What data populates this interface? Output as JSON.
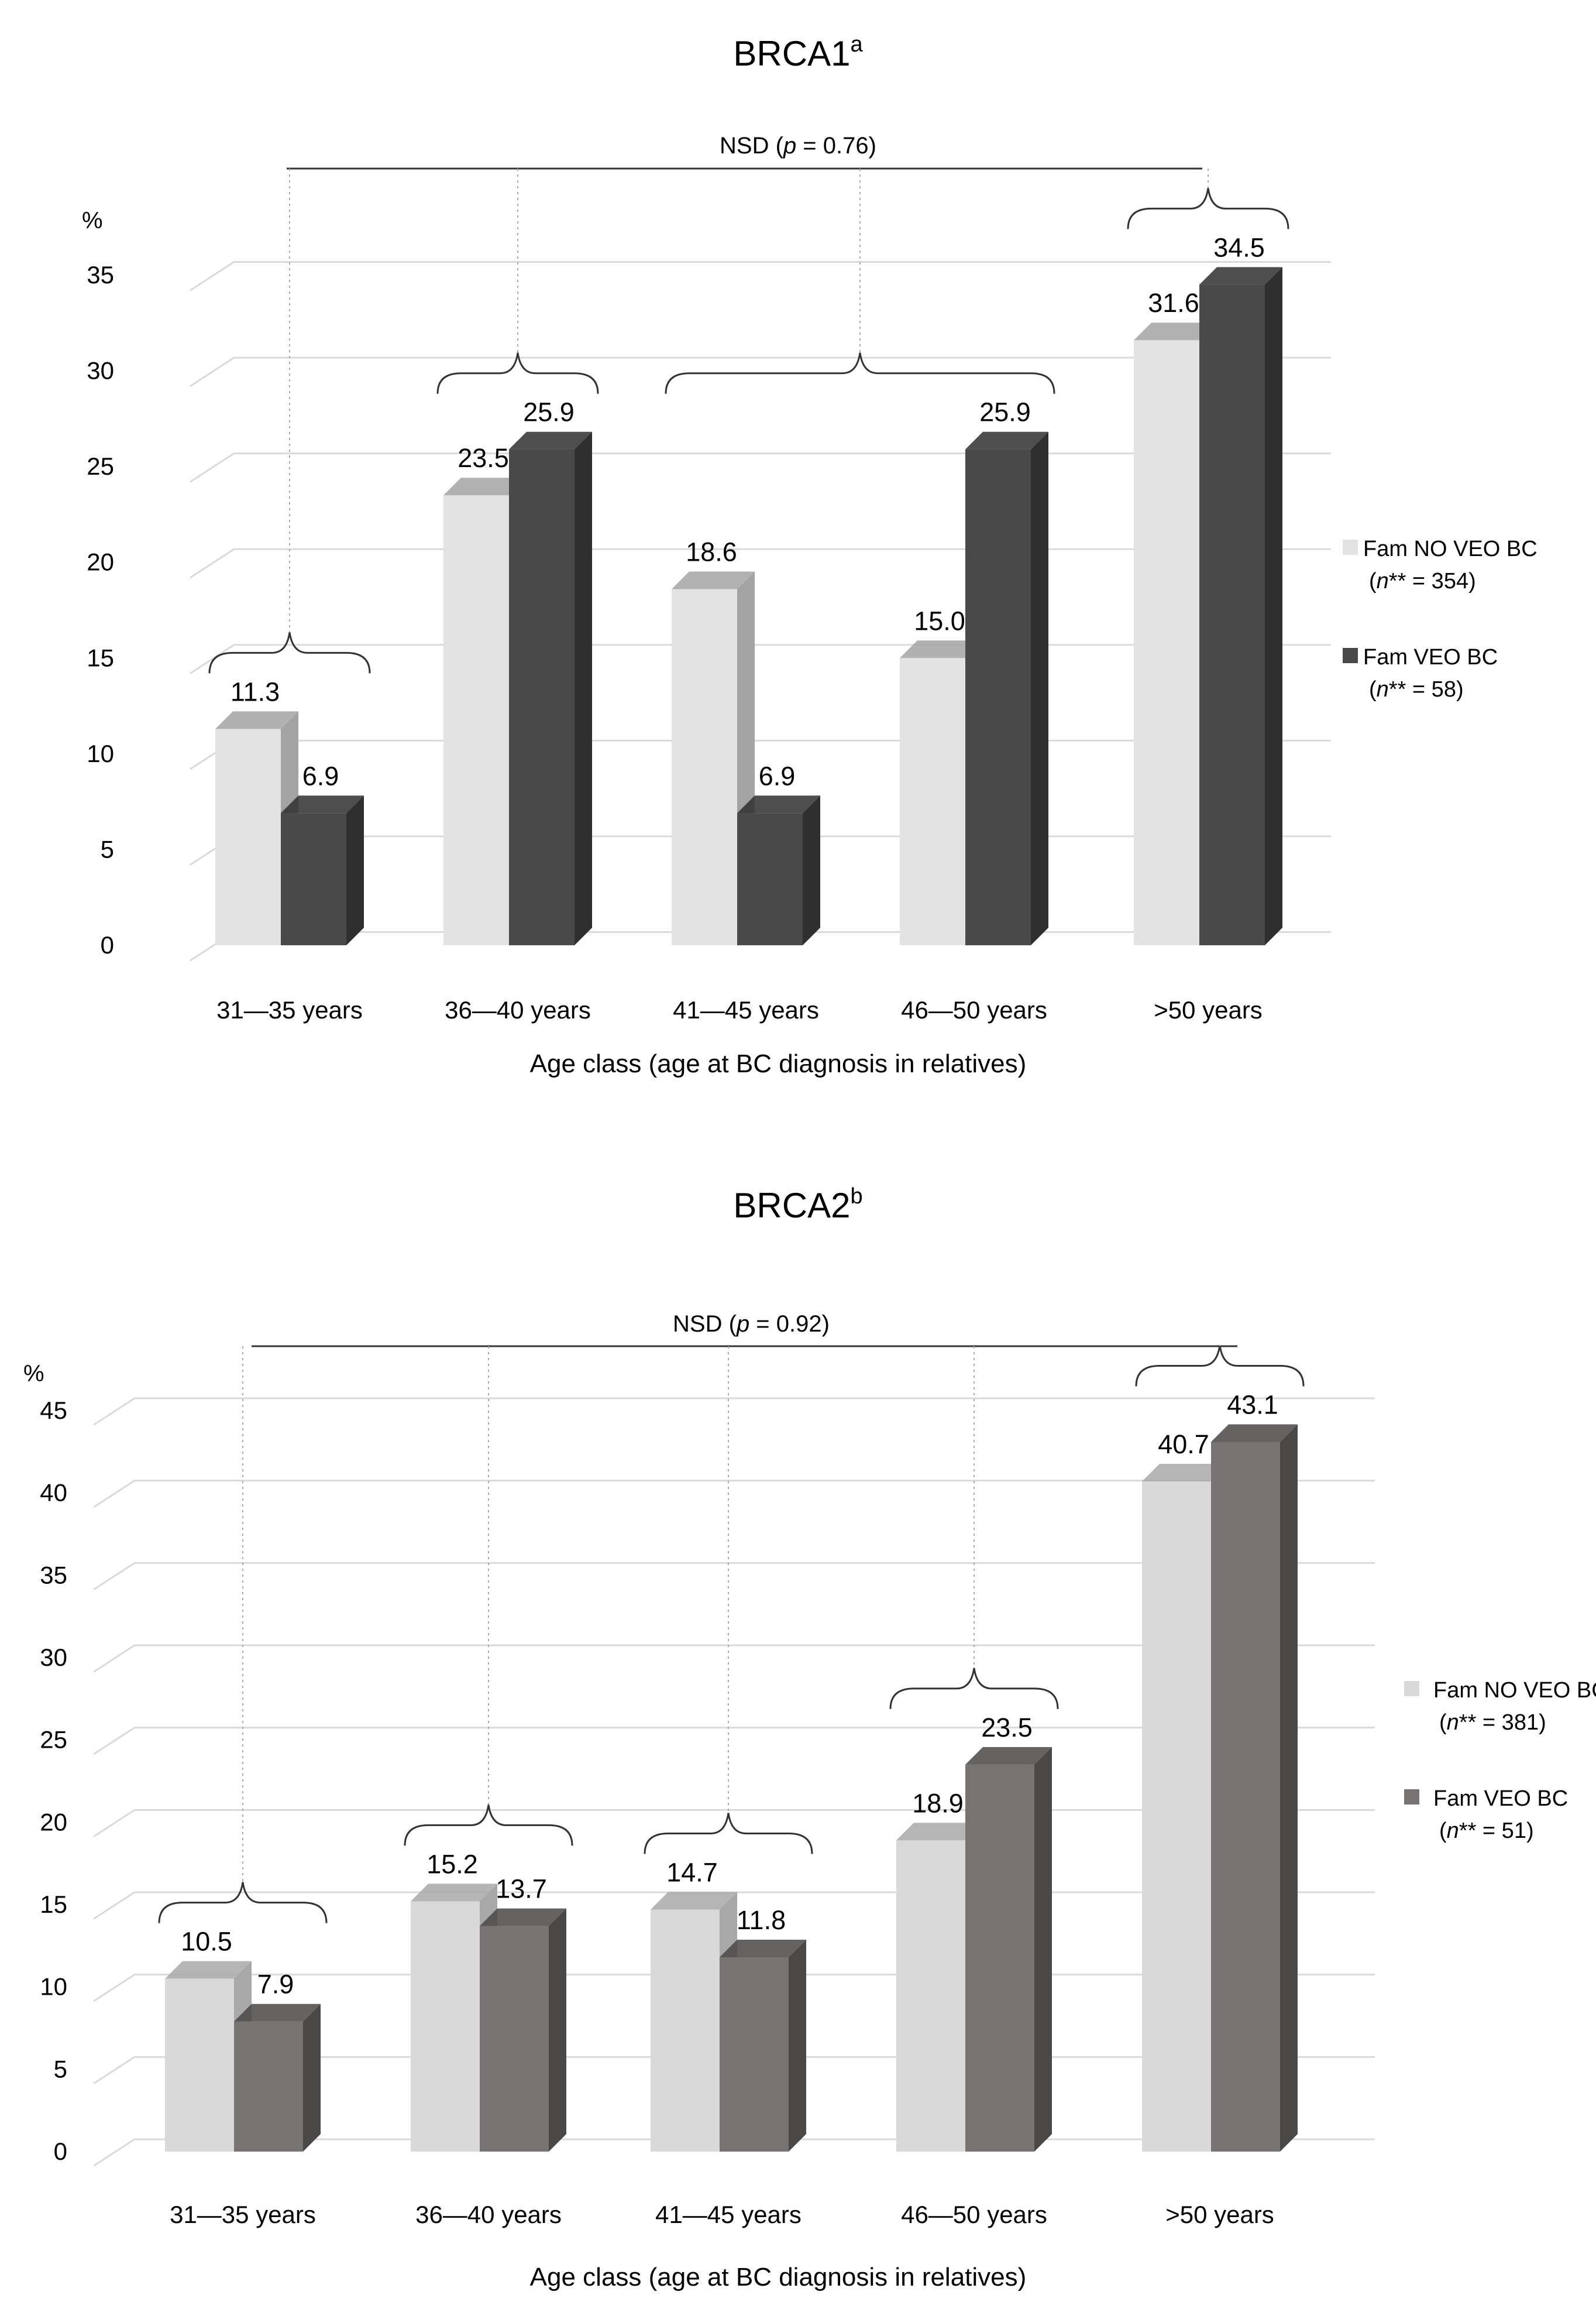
{
  "chart_data": [
    {
      "type": "bar",
      "title": "BRCA1",
      "title_superscript": "a",
      "unit_label": "%",
      "categories": [
        "31—35 years",
        "36—40 years",
        "41—45 years",
        "46—50 years",
        ">50 years"
      ],
      "series": [
        {
          "name": "Fam NO VEO BC",
          "n_prefix": "n",
          "n_suffix": "** = 354",
          "values": [
            11.3,
            23.5,
            18.6,
            15.0,
            31.6
          ],
          "labels": [
            "11.3",
            "23.5",
            "18.6",
            "15.0",
            "31.6"
          ],
          "color": "#e3e3e3",
          "side_color": "#a3a3a3"
        },
        {
          "name": "Fam VEO BC",
          "n_prefix": "n",
          "n_suffix": "** = 58",
          "values": [
            6.9,
            25.9,
            6.9,
            25.9,
            34.5
          ],
          "labels": [
            "6.9",
            "25.9",
            "6.9",
            "25.9",
            "34.5"
          ],
          "color": "#494949",
          "side_color": "#2f2f2f"
        }
      ],
      "brace_groups": [
        [
          0
        ],
        [
          1
        ],
        [
          2,
          3
        ],
        [
          4
        ]
      ],
      "overall_test": {
        "prefix": "NSD (",
        "p_symbol": "p",
        "suffix": " = 0.76)"
      },
      "xlabel": "Age class (age at BC diagnosis in relatives)",
      "yticks": [
        "0",
        "5",
        "10",
        "15",
        "20",
        "25",
        "30",
        "35"
      ],
      "ylim": [
        0,
        35
      ],
      "grid": true
    },
    {
      "type": "bar",
      "title": "BRCA2",
      "title_superscript": "b",
      "unit_label": "%",
      "categories": [
        "31—35 years",
        "36—40 years",
        "41—45 years",
        "46—50 years",
        ">50 years"
      ],
      "series": [
        {
          "name": "Fam NO VEO BC",
          "n_prefix": "n",
          "n_suffix": "** = 381",
          "values": [
            10.5,
            15.2,
            14.7,
            18.9,
            40.7
          ],
          "labels": [
            "10.5",
            "15.2",
            "14.7",
            "18.9",
            "40.7"
          ],
          "color": "#d9d9d9",
          "side_color": "#a8a8a8"
        },
        {
          "name": "Fam VEO BC",
          "n_prefix": "n",
          "n_suffix": "** = 51",
          "values": [
            7.9,
            13.7,
            11.8,
            23.5,
            43.1
          ],
          "labels": [
            "7.9",
            "13.7",
            "11.8",
            "23.5",
            "43.1"
          ],
          "color": "#777373",
          "side_color": "#4a4747"
        }
      ],
      "brace_groups": [
        [
          0
        ],
        [
          1
        ],
        [
          2
        ],
        [
          3
        ],
        [
          4
        ]
      ],
      "overall_test": {
        "prefix": "NSD (",
        "p_symbol": "p",
        "suffix": " = 0.92)"
      },
      "xlabel": "Age class (age at BC diagnosis in relatives)",
      "yticks": [
        "0",
        "5",
        "10",
        "15",
        "20",
        "25",
        "30",
        "35",
        "40",
        "45"
      ],
      "ylim": [
        0,
        45
      ],
      "grid": true
    }
  ]
}
